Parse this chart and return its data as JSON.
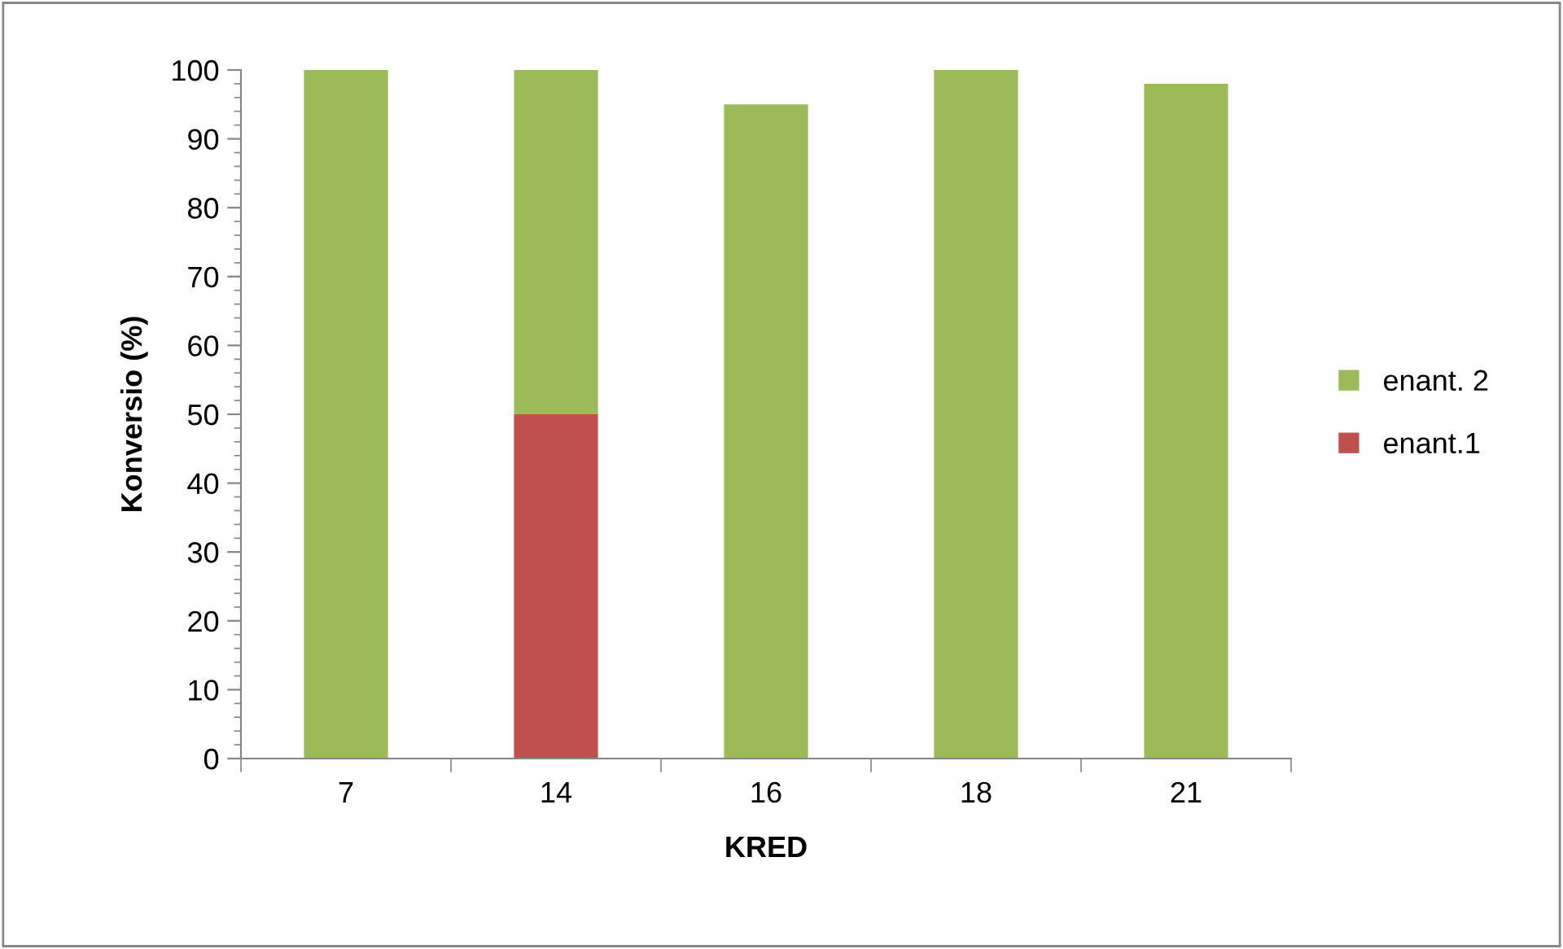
{
  "chart_data": {
    "type": "bar",
    "stacked": true,
    "xlabel": "KRED",
    "ylabel": "Konversio (%)",
    "categories": [
      "7",
      "14",
      "16",
      "18",
      "21"
    ],
    "series": [
      {
        "name": "enant.1",
        "color": "#c0504d",
        "values": [
          0,
          50,
          0,
          0,
          0
        ]
      },
      {
        "name": "enant. 2",
        "color": "#9bbb59",
        "values": [
          100,
          50,
          95,
          100,
          98
        ]
      }
    ],
    "ylim": [
      0,
      100
    ],
    "yticks": [
      0,
      10,
      20,
      30,
      40,
      50,
      60,
      70,
      80,
      90,
      100
    ],
    "grid": false,
    "legend": "right"
  }
}
